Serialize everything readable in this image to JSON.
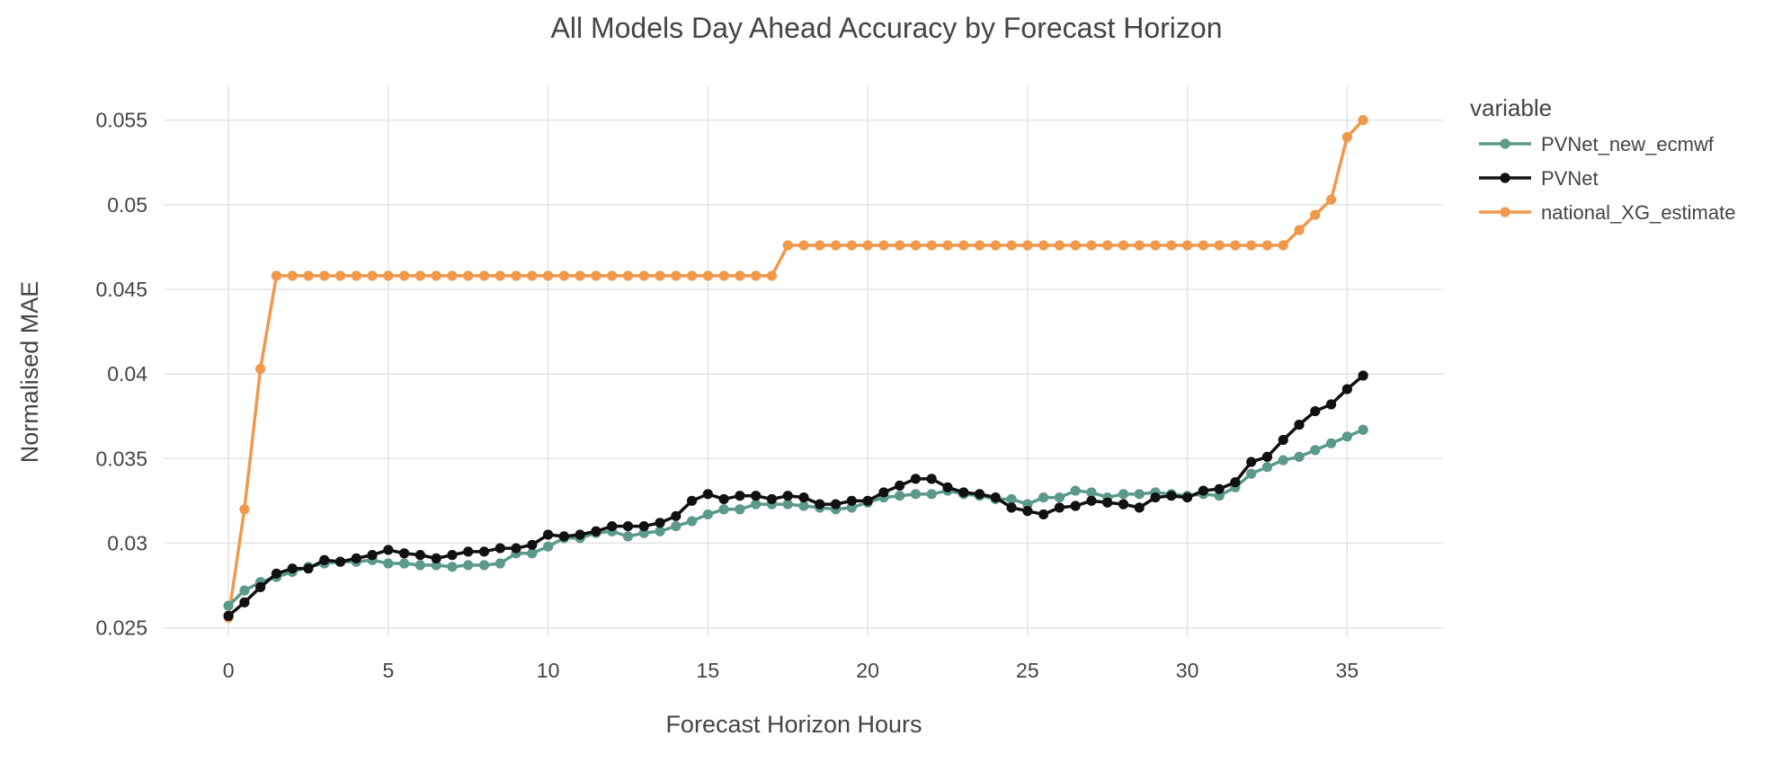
{
  "chart_data": {
    "type": "line",
    "title": "All Models Day Ahead Accuracy by Forecast Horizon",
    "xlabel": "Forecast Horizon Hours",
    "ylabel": "Normalised MAE",
    "xlim": [
      -2,
      38
    ],
    "ylim": [
      0.0245,
      0.057
    ],
    "x_ticks": [
      0,
      5,
      10,
      15,
      20,
      25,
      30,
      35
    ],
    "x_tick_labels": [
      "0",
      "5",
      "10",
      "15",
      "20",
      "25",
      "30",
      "35"
    ],
    "y_ticks": [
      0.025,
      0.03,
      0.035,
      0.04,
      0.045,
      0.05,
      0.055
    ],
    "y_tick_labels": [
      "0.025",
      "0.03",
      "0.035",
      "0.04",
      "0.045",
      "0.05",
      "0.055"
    ],
    "grid": true,
    "legend": {
      "title": "variable",
      "position": "right"
    },
    "x": [
      0,
      0.5,
      1,
      1.5,
      2,
      2.5,
      3,
      3.5,
      4,
      4.5,
      5,
      5.5,
      6,
      6.5,
      7,
      7.5,
      8,
      8.5,
      9,
      9.5,
      10,
      10.5,
      11,
      11.5,
      12,
      12.5,
      13,
      13.5,
      14,
      14.5,
      15,
      15.5,
      16,
      16.5,
      17,
      17.5,
      18,
      18.5,
      19,
      19.5,
      20,
      20.5,
      21,
      21.5,
      22,
      22.5,
      23,
      23.5,
      24,
      24.5,
      25,
      25.5,
      26,
      26.5,
      27,
      27.5,
      28,
      28.5,
      29,
      29.5,
      30,
      30.5,
      31,
      31.5,
      32,
      32.5,
      33,
      33.5,
      34,
      34.5,
      35,
      35.5
    ],
    "series": [
      {
        "name": "PVNet_new_ecmwf",
        "color": "#5b9a8b",
        "values": [
          0.0263,
          0.0272,
          0.0277,
          0.028,
          0.0283,
          0.0286,
          0.0288,
          0.0289,
          0.0289,
          0.029,
          0.0288,
          0.0288,
          0.0287,
          0.0287,
          0.0286,
          0.0287,
          0.0287,
          0.0288,
          0.0294,
          0.0294,
          0.0298,
          0.0303,
          0.0303,
          0.0306,
          0.0307,
          0.0304,
          0.0306,
          0.0307,
          0.031,
          0.0313,
          0.0317,
          0.032,
          0.032,
          0.0323,
          0.0323,
          0.0323,
          0.0322,
          0.0321,
          0.032,
          0.0321,
          0.0324,
          0.0327,
          0.0328,
          0.0329,
          0.0329,
          0.0331,
          0.0329,
          0.0328,
          0.0326,
          0.0326,
          0.0323,
          0.0327,
          0.0327,
          0.0331,
          0.033,
          0.0327,
          0.0329,
          0.0329,
          0.033,
          0.0329,
          0.0328,
          0.0329,
          0.0328,
          0.0333,
          0.0341,
          0.0345,
          0.0349,
          0.0351,
          0.0355,
          0.0359,
          0.0363,
          0.0367
        ]
      },
      {
        "name": "PVNet",
        "color": "#111111",
        "values": [
          0.0257,
          0.0265,
          0.0274,
          0.0282,
          0.0285,
          0.0285,
          0.029,
          0.0289,
          0.0291,
          0.0293,
          0.0296,
          0.0294,
          0.0293,
          0.0291,
          0.0293,
          0.0295,
          0.0295,
          0.0297,
          0.0297,
          0.0299,
          0.0305,
          0.0304,
          0.0305,
          0.0307,
          0.031,
          0.031,
          0.031,
          0.0312,
          0.0316,
          0.0325,
          0.0329,
          0.0326,
          0.0328,
          0.0328,
          0.0326,
          0.0328,
          0.0327,
          0.0323,
          0.0323,
          0.0325,
          0.0325,
          0.033,
          0.0334,
          0.0338,
          0.0338,
          0.0333,
          0.033,
          0.0329,
          0.0327,
          0.0321,
          0.0319,
          0.0317,
          0.0321,
          0.0322,
          0.0325,
          0.0324,
          0.0323,
          0.0321,
          0.0327,
          0.0328,
          0.0327,
          0.0331,
          0.0332,
          0.0336,
          0.0348,
          0.0351,
          0.0361,
          0.037,
          0.0378,
          0.0382,
          0.0391,
          0.0399
        ]
      },
      {
        "name": "national_XG_estimate",
        "color": "#f0994a",
        "values": [
          0.0256,
          0.032,
          0.0403,
          0.0458,
          0.0458,
          0.0458,
          0.0458,
          0.0458,
          0.0458,
          0.0458,
          0.0458,
          0.0458,
          0.0458,
          0.0458,
          0.0458,
          0.0458,
          0.0458,
          0.0458,
          0.0458,
          0.0458,
          0.0458,
          0.0458,
          0.0458,
          0.0458,
          0.0458,
          0.0458,
          0.0458,
          0.0458,
          0.0458,
          0.0458,
          0.0458,
          0.0458,
          0.0458,
          0.0458,
          0.0458,
          0.0476,
          0.0476,
          0.0476,
          0.0476,
          0.0476,
          0.0476,
          0.0476,
          0.0476,
          0.0476,
          0.0476,
          0.0476,
          0.0476,
          0.0476,
          0.0476,
          0.0476,
          0.0476,
          0.0476,
          0.0476,
          0.0476,
          0.0476,
          0.0476,
          0.0476,
          0.0476,
          0.0476,
          0.0476,
          0.0476,
          0.0476,
          0.0476,
          0.0476,
          0.0476,
          0.0476,
          0.0476,
          0.0485,
          0.0494,
          0.0503,
          0.054,
          0.055
        ]
      }
    ]
  }
}
